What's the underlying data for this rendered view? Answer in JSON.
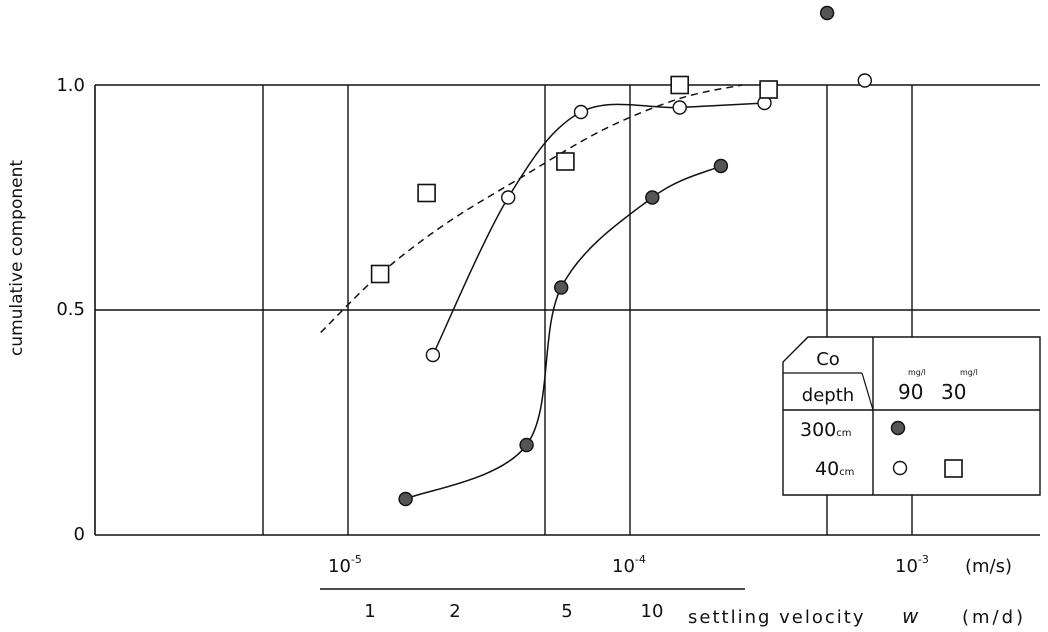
{
  "chart_data": {
    "type": "scatter",
    "ylabel": "cumulative component",
    "y_ticks": [
      "0",
      "0.5",
      "1.0"
    ],
    "x_axis": {
      "scale": "log",
      "unit_label": "(m/s)",
      "ticks": [
        {
          "value": 1e-05,
          "base": "10",
          "exp": "-5"
        },
        {
          "value": 0.0001,
          "base": "10",
          "exp": "-4"
        },
        {
          "value": 0.001,
          "base": "10",
          "exp": "-3"
        }
      ]
    },
    "secondary_axis": {
      "label_main": "settling velocity",
      "label_symbol": "w",
      "unit_label": "(m/d)",
      "ticks": [
        {
          "value": 1,
          "label": "1"
        },
        {
          "value": 2,
          "label": "2"
        },
        {
          "value": 5,
          "label": "5"
        },
        {
          "value": 10,
          "label": "10"
        }
      ]
    },
    "xlim": [
      2e-06,
      0.002
    ],
    "ylim": [
      0,
      1
    ],
    "grid": true,
    "series": [
      {
        "id": "s300_90",
        "marker": "filled-circle",
        "line": "solid",
        "points": [
          {
            "x": 1.6e-05,
            "y": 0.08
          },
          {
            "x": 4.3e-05,
            "y": 0.2
          },
          {
            "x": 5.7e-05,
            "y": 0.55
          },
          {
            "x": 0.00012,
            "y": 0.75
          },
          {
            "x": 0.00021,
            "y": 0.82
          },
          {
            "x": 0.0005,
            "y": 1.16
          }
        ],
        "curve_points": 5
      },
      {
        "id": "s40_90",
        "marker": "open-circle",
        "line": "solid",
        "points": [
          {
            "x": 2e-05,
            "y": 0.4
          },
          {
            "x": 3.7e-05,
            "y": 0.75
          },
          {
            "x": 6.7e-05,
            "y": 0.94
          },
          {
            "x": 0.00015,
            "y": 0.95
          },
          {
            "x": 0.0003,
            "y": 0.96
          },
          {
            "x": 0.00068,
            "y": 1.01
          }
        ],
        "curve_points": 5
      },
      {
        "id": "s40_30",
        "marker": "open-square",
        "line": "dashed",
        "points": [
          {
            "x": 1.3e-05,
            "y": 0.58
          },
          {
            "x": 1.9e-05,
            "y": 0.76
          },
          {
            "x": 5.9e-05,
            "y": 0.83
          },
          {
            "x": 0.00015,
            "y": 1.0
          },
          {
            "x": 0.00031,
            "y": 0.99
          }
        ],
        "dashed_curve": [
          {
            "x": 8e-06,
            "y": 0.45
          },
          {
            "x": 1.3e-05,
            "y": 0.58
          },
          {
            "x": 2.2e-05,
            "y": 0.69
          },
          {
            "x": 4e-05,
            "y": 0.79
          },
          {
            "x": 8e-05,
            "y": 0.9
          },
          {
            "x": 0.00015,
            "y": 0.97
          },
          {
            "x": 0.00025,
            "y": 1.0
          }
        ]
      }
    ],
    "legend": {
      "placement": "bottom-right",
      "co_label": "Co",
      "depth_label": "depth",
      "conc_unit": "mg/l",
      "conc_values": [
        "90",
        "30"
      ],
      "rows": [
        {
          "value": "300",
          "unit": "cm",
          "markers": [
            "filled-circle",
            ""
          ]
        },
        {
          "value": "40",
          "unit": "cm",
          "markers": [
            "open-circle",
            "open-square"
          ]
        }
      ]
    }
  }
}
